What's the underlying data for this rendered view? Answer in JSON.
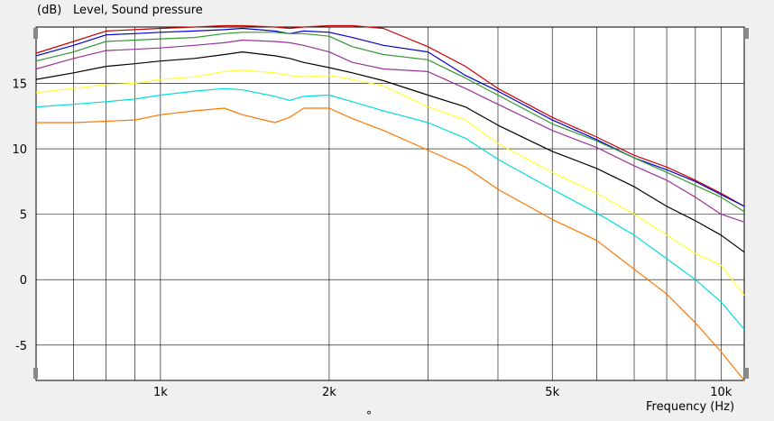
{
  "chart_data": {
    "type": "line",
    "title": "Level, Sound pressure",
    "ylabel": "(dB)",
    "xlabel": "Frequency  (Hz)",
    "x_scale": "log",
    "xlim": [
      600,
      11000
    ],
    "ylim": [
      -7.7,
      19.3
    ],
    "grid": true,
    "background_color": "#ffffff",
    "grid_color": "#000000",
    "x_ticks": [
      1000,
      2000,
      5000,
      10000
    ],
    "x_tick_labels": [
      "1k",
      "2k",
      "5k",
      "10k"
    ],
    "y_ticks": [
      15,
      10,
      5,
      0,
      -5
    ],
    "y_tick_labels": [
      "15",
      "10",
      "5",
      "0",
      "-5"
    ],
    "x_minor_grid": [
      700,
      800,
      900,
      1000,
      2000,
      3000,
      4000,
      5000,
      6000,
      7000,
      8000,
      9000,
      10000
    ],
    "x": [
      600,
      700,
      800,
      900,
      1000,
      1150,
      1300,
      1400,
      1600,
      1700,
      1800,
      2000,
      2200,
      2500,
      3000,
      3500,
      4000,
      5000,
      6000,
      7000,
      8000,
      9000,
      10000,
      11000
    ],
    "series": [
      {
        "color": "#cc0000",
        "values": [
          17.3,
          18.2,
          19.0,
          19.1,
          19.2,
          19.3,
          19.4,
          19.4,
          19.3,
          19.2,
          19.3,
          19.4,
          19.4,
          19.2,
          17.8,
          16.3,
          14.6,
          12.4,
          10.9,
          9.5,
          8.6,
          7.6,
          6.6,
          5.6
        ]
      },
      {
        "color": "#0000cc",
        "values": [
          17.1,
          17.9,
          18.7,
          18.8,
          18.9,
          19.0,
          19.1,
          19.2,
          19.0,
          18.8,
          19.0,
          18.9,
          18.5,
          17.9,
          17.4,
          15.6,
          14.4,
          12.2,
          10.7,
          9.3,
          8.4,
          7.5,
          6.5,
          5.6
        ]
      },
      {
        "color": "#339933",
        "values": [
          16.7,
          17.4,
          18.2,
          18.3,
          18.4,
          18.5,
          18.8,
          18.9,
          18.9,
          18.8,
          18.8,
          18.6,
          17.8,
          17.2,
          16.8,
          15.4,
          14.1,
          11.9,
          10.6,
          9.3,
          8.2,
          7.2,
          6.3,
          5.2
        ]
      },
      {
        "color": "#993399",
        "values": [
          16.1,
          16.9,
          17.5,
          17.6,
          17.7,
          17.9,
          18.1,
          18.3,
          18.2,
          18.1,
          17.9,
          17.4,
          16.6,
          16.1,
          15.9,
          14.6,
          13.4,
          11.4,
          10.1,
          8.7,
          7.6,
          6.3,
          5.0,
          4.4
        ]
      },
      {
        "color": "#000000",
        "values": [
          15.3,
          15.8,
          16.3,
          16.5,
          16.7,
          16.9,
          17.2,
          17.4,
          17.1,
          16.9,
          16.6,
          16.2,
          15.8,
          15.2,
          14.1,
          13.2,
          11.8,
          9.8,
          8.5,
          7.1,
          5.6,
          4.5,
          3.4,
          2.1
        ]
      },
      {
        "color": "#ffff33",
        "values": [
          14.3,
          14.6,
          14.9,
          15.0,
          15.3,
          15.5,
          15.9,
          16.0,
          15.8,
          15.6,
          15.5,
          15.6,
          15.3,
          14.8,
          13.2,
          12.2,
          10.4,
          8.2,
          6.6,
          5.0,
          3.4,
          2.0,
          1.1,
          -1.2
        ]
      },
      {
        "color": "#00dddd",
        "values": [
          13.2,
          13.4,
          13.6,
          13.8,
          14.1,
          14.4,
          14.6,
          14.5,
          14.0,
          13.7,
          14.0,
          14.1,
          13.6,
          12.9,
          12.0,
          10.8,
          9.2,
          6.9,
          5.1,
          3.4,
          1.6,
          0.0,
          -1.7,
          -3.8
        ]
      },
      {
        "color": "#ff7700",
        "values": [
          12.0,
          12.0,
          12.1,
          12.2,
          12.6,
          12.9,
          13.1,
          12.6,
          12.0,
          12.4,
          13.1,
          13.1,
          12.3,
          11.4,
          9.9,
          8.6,
          6.9,
          4.6,
          3.0,
          0.8,
          -1.1,
          -3.3,
          -5.5,
          -7.7
        ]
      }
    ]
  },
  "ui": {
    "bottom_marker": "°"
  }
}
